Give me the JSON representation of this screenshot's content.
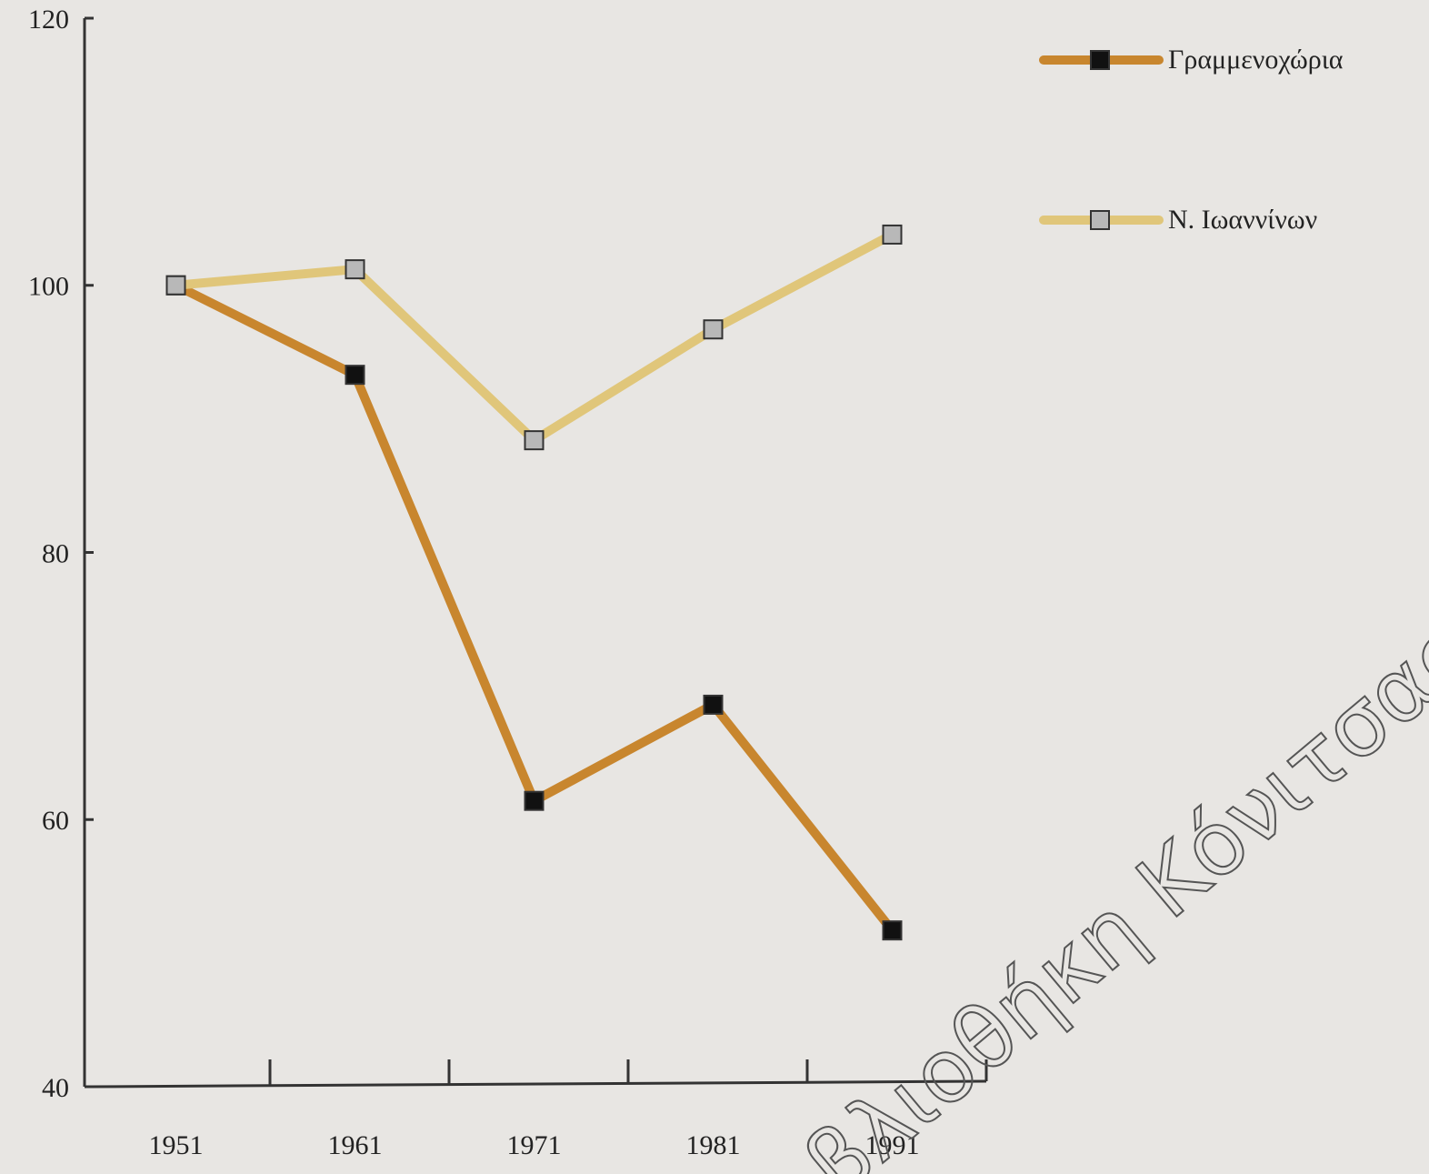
{
  "chart_data": {
    "type": "line",
    "categories": [
      "1951",
      "1961",
      "1971",
      "1981",
      "1991"
    ],
    "series": [
      {
        "name": "Γραμμενοχώρια",
        "color": "#c8862e",
        "marker_color": "#111111",
        "values": [
          100,
          93.3,
          61.4,
          68.6,
          51.7
        ]
      },
      {
        "name": "Ν. Ιωαννίνων",
        "color": "#e0c67a",
        "marker_color": "#b8b8b8",
        "values": [
          100,
          101.2,
          88.4,
          96.7,
          103.8
        ]
      }
    ],
    "ylim": [
      40,
      120
    ],
    "yticks": [
      40,
      60,
      80,
      100,
      120
    ],
    "grid": false,
    "legend": "top-right",
    "watermark": "βλιοθήκη Κόνιτσας"
  }
}
